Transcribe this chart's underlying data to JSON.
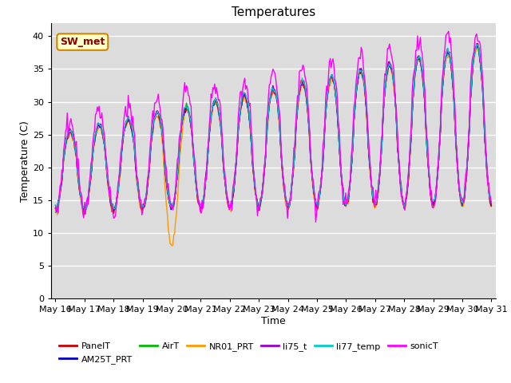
{
  "title": "Temperatures",
  "xlabel": "Time",
  "ylabel": "Temperature (C)",
  "ylim": [
    0,
    42
  ],
  "yticks": [
    0,
    5,
    10,
    15,
    20,
    25,
    30,
    35,
    40
  ],
  "start_day": 16,
  "end_day": 31,
  "num_points": 480,
  "annotation_text": "SW_met",
  "series_colors": {
    "PanelT": "#cc0000",
    "AM25T_PRT": "#0000cc",
    "AirT": "#00bb00",
    "NR01_PRT": "#ff9900",
    "li75_t": "#9900cc",
    "li77_temp": "#00cccc",
    "sonicT": "#ff00ff"
  },
  "background_color": "#dcdcdc",
  "fig_background": "#ffffff",
  "grid_color": "#ffffff",
  "linewidth": 1.0,
  "title_fontsize": 11,
  "axis_fontsize": 9,
  "tick_fontsize": 8
}
